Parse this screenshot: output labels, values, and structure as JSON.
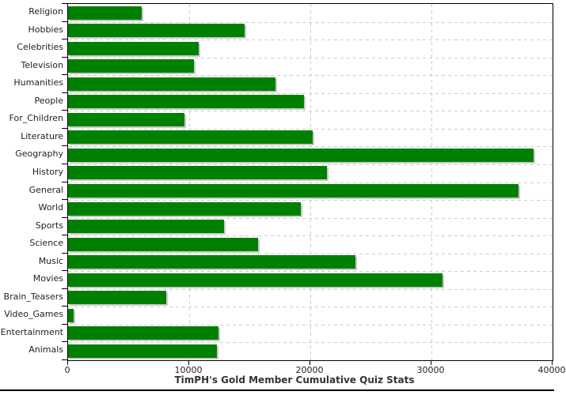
{
  "title": "TimPH's Gold Member Cumulative Quiz Stats",
  "chart_data": {
    "type": "bar",
    "orientation": "horizontal",
    "title": "TimPH's Gold Member Cumulative Quiz Stats",
    "categories": [
      "Religion",
      "Hobbies",
      "Celebrities",
      "Television",
      "Humanities",
      "People",
      "For_Children",
      "Literature",
      "Geography",
      "History",
      "General",
      "World",
      "Sports",
      "Science",
      "Music",
      "Movies",
      "Brain_Teasers",
      "Video_Games",
      "Entertainment",
      "Animals"
    ],
    "values": [
      6100,
      14600,
      10800,
      10400,
      17100,
      19500,
      9600,
      20200,
      38400,
      21400,
      37200,
      19200,
      12900,
      15700,
      23700,
      30900,
      8100,
      450,
      12400,
      12300
    ],
    "xlabel": "",
    "ylabel": "",
    "xlim": [
      0,
      40000
    ],
    "x_ticks": [
      0,
      10000,
      20000,
      30000,
      40000
    ],
    "x_tick_labels": [
      "0",
      "10000",
      "20000",
      "30000",
      "40000"
    ],
    "grid": "dashed",
    "legend": "none",
    "colors": {
      "bar": "#008000",
      "bar_shadow": "#c9c9c9",
      "gridline": "#cccccc",
      "axis": "#000000",
      "text": "#222222",
      "title_text": "#333333",
      "background": "#ffffff"
    }
  }
}
